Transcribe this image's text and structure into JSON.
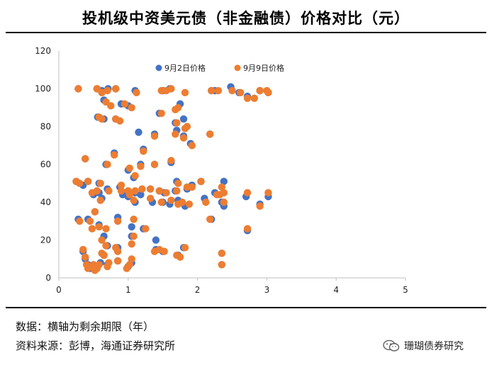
{
  "title": "投机级中资美元债（非金融债）价格对比（元）",
  "footnote": {
    "axis_note": "数据：横轴为剩余期限（年）",
    "source": "资料来源：彭博，海通证券研究所"
  },
  "watermark": {
    "text": "珊瑚债券研究",
    "icon": "wechat-icon"
  },
  "colors": {
    "sep2": "#4472C4",
    "sep9": "#ED7D31"
  },
  "chart_data": {
    "type": "scatter",
    "title": "投机级中资美元债（非金融债）价格对比（元）",
    "xlabel": "",
    "ylabel": "",
    "xlim": [
      0,
      5
    ],
    "ylim": [
      0,
      120
    ],
    "x_ticks": [
      0,
      1,
      2,
      3,
      4,
      5
    ],
    "y_ticks": [
      0,
      20,
      40,
      60,
      80,
      100,
      120
    ],
    "legend_position": "top-center",
    "series": [
      {
        "name": "9月2日价格",
        "color": "#4472C4",
        "points": [
          [
            0.28,
            100
          ],
          [
            0.55,
            100
          ],
          [
            0.62,
            99
          ],
          [
            0.71,
            100
          ],
          [
            0.82,
            100
          ],
          [
            1.1,
            99
          ],
          [
            1.5,
            99
          ],
          [
            1.6,
            100
          ],
          [
            2.2,
            99
          ],
          [
            2.25,
            99
          ],
          [
            2.48,
            101
          ],
          [
            2.6,
            98
          ],
          [
            2.72,
            96
          ],
          [
            2.9,
            99
          ],
          [
            3.02,
            98
          ],
          [
            0.65,
            94
          ],
          [
            0.9,
            92
          ],
          [
            1.0,
            91
          ],
          [
            1.75,
            92
          ],
          [
            0.56,
            85
          ],
          [
            0.65,
            84
          ],
          [
            0.82,
            84
          ],
          [
            1.45,
            87
          ],
          [
            1.8,
            84
          ],
          [
            1.68,
            82
          ],
          [
            1.15,
            77
          ],
          [
            1.38,
            76
          ],
          [
            1.7,
            78
          ],
          [
            1.8,
            75
          ],
          [
            2.18,
            76
          ],
          [
            1.9,
            71
          ],
          [
            0.38,
            63
          ],
          [
            0.8,
            66
          ],
          [
            1.22,
            68
          ],
          [
            0.68,
            60
          ],
          [
            1.0,
            57
          ],
          [
            1.18,
            60
          ],
          [
            1.38,
            60
          ],
          [
            1.62,
            61
          ],
          [
            1.08,
            53
          ],
          [
            0.25,
            51
          ],
          [
            0.35,
            49
          ],
          [
            0.42,
            51
          ],
          [
            0.58,
            50
          ],
          [
            0.7,
            47
          ],
          [
            0.88,
            48
          ],
          [
            0.95,
            45
          ],
          [
            1.0,
            43
          ],
          [
            1.1,
            45
          ],
          [
            1.18,
            44
          ],
          [
            1.32,
            47
          ],
          [
            1.45,
            46
          ],
          [
            1.52,
            45
          ],
          [
            1.68,
            46
          ],
          [
            1.7,
            51
          ],
          [
            1.85,
            47
          ],
          [
            1.92,
            49
          ],
          [
            2.05,
            51
          ],
          [
            2.25,
            45
          ],
          [
            2.38,
            51
          ],
          [
            2.7,
            43
          ],
          [
            3.02,
            43
          ],
          [
            0.5,
            44
          ],
          [
            0.58,
            45
          ],
          [
            0.62,
            42
          ],
          [
            0.92,
            44
          ],
          [
            1.1,
            40
          ],
          [
            1.35,
            40
          ],
          [
            1.5,
            40
          ],
          [
            1.6,
            39
          ],
          [
            1.72,
            41
          ],
          [
            1.82,
            38
          ],
          [
            2.1,
            42
          ],
          [
            2.35,
            40
          ],
          [
            2.38,
            38
          ],
          [
            2.9,
            39
          ],
          [
            0.28,
            31
          ],
          [
            0.52,
            35
          ],
          [
            0.42,
            31
          ],
          [
            0.58,
            28
          ],
          [
            0.85,
            32
          ],
          [
            1.05,
            27
          ],
          [
            1.22,
            26
          ],
          [
            0.65,
            22
          ],
          [
            1.05,
            22
          ],
          [
            0.7,
            17
          ],
          [
            0.85,
            16
          ],
          [
            1.4,
            20
          ],
          [
            1.4,
            15
          ],
          [
            1.5,
            14
          ],
          [
            1.72,
            12
          ],
          [
            1.8,
            16
          ],
          [
            2.2,
            31
          ],
          [
            2.72,
            25
          ],
          [
            0.35,
            14
          ],
          [
            0.38,
            10
          ],
          [
            0.42,
            7
          ],
          [
            0.45,
            5
          ],
          [
            0.5,
            6
          ],
          [
            0.55,
            5
          ],
          [
            0.6,
            8
          ],
          [
            0.65,
            12
          ],
          [
            0.7,
            7
          ],
          [
            0.85,
            9
          ],
          [
            1.0,
            6
          ],
          [
            1.05,
            8
          ],
          [
            2.35,
            13
          ],
          [
            2.35,
            7
          ]
        ]
      },
      {
        "name": "9月9日价格",
        "color": "#ED7D31",
        "points": [
          [
            0.28,
            100
          ],
          [
            0.55,
            100
          ],
          [
            0.62,
            98
          ],
          [
            0.7,
            99
          ],
          [
            0.82,
            100
          ],
          [
            1.12,
            98
          ],
          [
            1.48,
            99
          ],
          [
            1.55,
            99
          ],
          [
            1.62,
            100
          ],
          [
            1.82,
            98
          ],
          [
            2.2,
            99
          ],
          [
            2.3,
            99
          ],
          [
            2.5,
            99
          ],
          [
            2.62,
            98
          ],
          [
            2.72,
            95
          ],
          [
            2.82,
            95
          ],
          [
            2.9,
            99
          ],
          [
            3.0,
            99
          ],
          [
            3.02,
            98
          ],
          [
            0.68,
            93
          ],
          [
            0.75,
            91
          ],
          [
            0.95,
            92
          ],
          [
            1.05,
            90
          ],
          [
            1.72,
            90
          ],
          [
            1.68,
            89
          ],
          [
            0.58,
            85
          ],
          [
            0.62,
            84
          ],
          [
            0.82,
            84
          ],
          [
            0.88,
            83
          ],
          [
            1.48,
            87
          ],
          [
            1.7,
            82
          ],
          [
            1.82,
            79
          ],
          [
            1.85,
            80
          ],
          [
            1.38,
            75
          ],
          [
            1.8,
            74
          ],
          [
            1.92,
            70
          ],
          [
            2.18,
            76
          ],
          [
            0.38,
            63
          ],
          [
            0.8,
            65
          ],
          [
            1.22,
            67
          ],
          [
            1.68,
            76
          ],
          [
            0.7,
            60
          ],
          [
            1.02,
            58
          ],
          [
            1.18,
            59
          ],
          [
            1.38,
            60
          ],
          [
            1.62,
            62
          ],
          [
            1.1,
            54
          ],
          [
            0.25,
            51
          ],
          [
            0.3,
            50
          ],
          [
            0.42,
            51
          ],
          [
            0.6,
            50
          ],
          [
            0.72,
            46
          ],
          [
            0.9,
            49
          ],
          [
            1.0,
            46
          ],
          [
            1.02,
            44
          ],
          [
            1.1,
            46
          ],
          [
            1.2,
            47
          ],
          [
            1.32,
            47
          ],
          [
            1.45,
            46
          ],
          [
            1.55,
            45
          ],
          [
            1.7,
            46
          ],
          [
            1.72,
            50
          ],
          [
            1.85,
            48
          ],
          [
            1.92,
            48
          ],
          [
            2.05,
            51
          ],
          [
            2.28,
            44
          ],
          [
            2.35,
            48
          ],
          [
            2.38,
            45
          ],
          [
            2.72,
            45
          ],
          [
            3.02,
            45
          ],
          [
            0.48,
            45
          ],
          [
            0.55,
            46
          ],
          [
            0.6,
            41
          ],
          [
            0.9,
            46
          ],
          [
            1.08,
            41
          ],
          [
            1.32,
            42
          ],
          [
            1.48,
            40
          ],
          [
            1.62,
            41
          ],
          [
            1.72,
            39
          ],
          [
            1.78,
            40
          ],
          [
            1.88,
            39
          ],
          [
            2.12,
            40
          ],
          [
            2.32,
            44
          ],
          [
            2.38,
            40
          ],
          [
            2.9,
            38
          ],
          [
            0.3,
            30
          ],
          [
            0.45,
            30
          ],
          [
            0.52,
            35
          ],
          [
            0.58,
            27
          ],
          [
            0.48,
            26
          ],
          [
            0.68,
            26
          ],
          [
            0.85,
            30
          ],
          [
            1.08,
            31
          ],
          [
            1.25,
            26
          ],
          [
            0.62,
            20
          ],
          [
            1.08,
            22
          ],
          [
            0.68,
            17
          ],
          [
            1.05,
            18
          ],
          [
            0.82,
            16
          ],
          [
            0.85,
            14
          ],
          [
            1.38,
            14
          ],
          [
            1.45,
            15
          ],
          [
            1.52,
            14
          ],
          [
            1.7,
            12
          ],
          [
            1.75,
            11
          ],
          [
            1.82,
            16
          ],
          [
            2.18,
            31
          ],
          [
            2.72,
            26
          ],
          [
            2.35,
            13
          ],
          [
            0.35,
            15
          ],
          [
            0.38,
            11
          ],
          [
            0.4,
            7
          ],
          [
            0.42,
            5
          ],
          [
            0.48,
            6
          ],
          [
            0.5,
            7
          ],
          [
            0.52,
            4
          ],
          [
            0.55,
            5
          ],
          [
            0.58,
            7
          ],
          [
            0.62,
            13
          ],
          [
            0.65,
            12
          ],
          [
            0.7,
            6
          ],
          [
            0.72,
            8
          ],
          [
            0.85,
            9
          ],
          [
            0.98,
            5
          ],
          [
            1.02,
            7
          ],
          [
            1.05,
            10
          ],
          [
            2.35,
            7
          ]
        ]
      }
    ]
  }
}
